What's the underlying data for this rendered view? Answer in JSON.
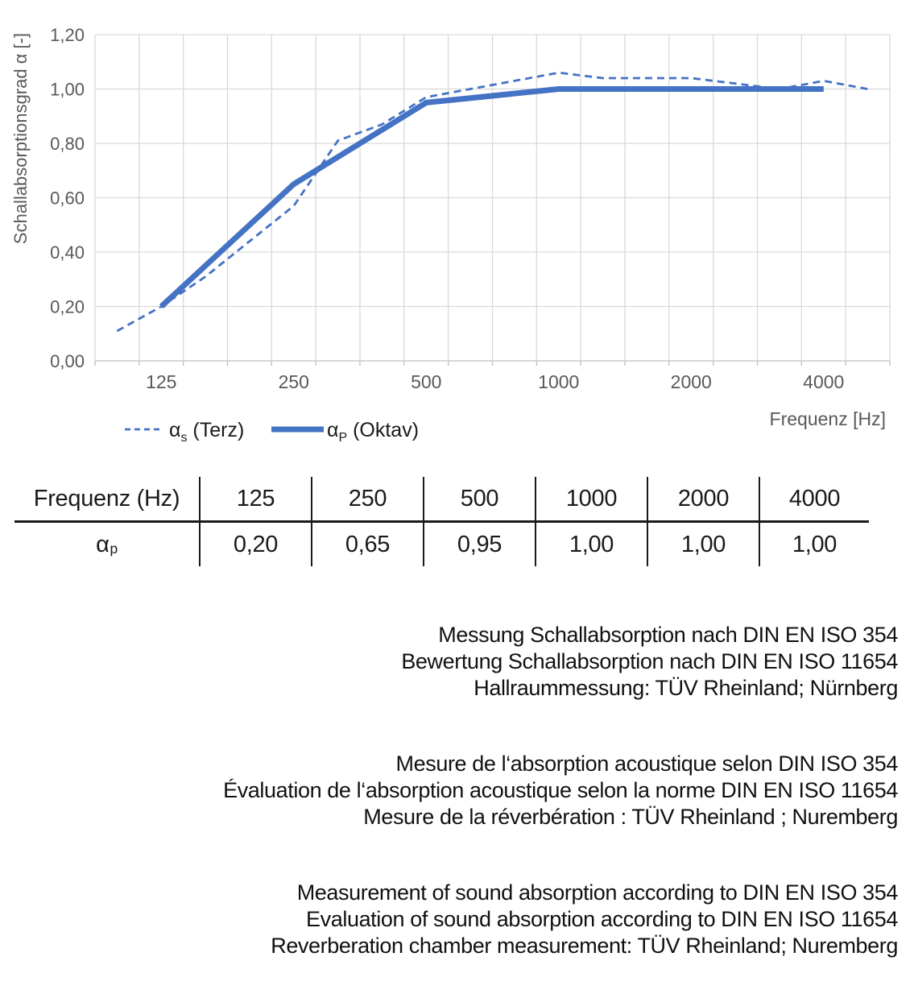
{
  "colors": {
    "series_blue": "#4472C4",
    "grid": "#D9D9D9",
    "axis_line": "#BFBFBF",
    "tick_text": "#595959",
    "body_text": "#1a1a1a"
  },
  "chart_data": {
    "type": "line",
    "title": "",
    "xlabel": "Frequenz [Hz]",
    "ylabel": "Schallabsorptionsgrad α [-]",
    "x_scale": "third-octave categorical (log)",
    "categories": [
      100,
      125,
      160,
      200,
      250,
      315,
      400,
      500,
      630,
      800,
      1000,
      1250,
      1600,
      2000,
      2500,
      3150,
      4000,
      5000
    ],
    "x_tick_labels": [
      "125",
      "250",
      "500",
      "1000",
      "2000",
      "4000"
    ],
    "ylim": [
      0,
      1.2
    ],
    "y_tick_step": 0.2,
    "y_tick_labels": [
      "0,00",
      "0,20",
      "0,40",
      "0,60",
      "0,80",
      "1,00",
      "1,20"
    ],
    "grid": true,
    "legend_position": "bottom-left",
    "series": [
      {
        "name": "αs (Terz)",
        "style": "dashed",
        "x": [
          100,
          125,
          160,
          200,
          250,
          315,
          400,
          500,
          630,
          800,
          1000,
          1250,
          1600,
          2000,
          2500,
          3150,
          4000,
          5000
        ],
        "values": [
          0.11,
          0.2,
          0.31,
          0.44,
          0.57,
          0.81,
          0.87,
          0.97,
          1.0,
          1.03,
          1.06,
          1.04,
          1.04,
          1.04,
          1.02,
          1.0,
          1.03,
          1.0
        ]
      },
      {
        "name": "αP (Oktav)",
        "style": "solid",
        "x": [
          125,
          250,
          500,
          1000,
          2000,
          4000
        ],
        "values": [
          0.2,
          0.65,
          0.95,
          1.0,
          1.0,
          1.0
        ]
      }
    ],
    "legend": [
      {
        "alpha": "α",
        "sub": "s",
        "rest": " (Terz)",
        "style": "dashed"
      },
      {
        "alpha": "α",
        "sub": "P",
        "rest": " (Oktav)",
        "style": "solid"
      }
    ]
  },
  "table": {
    "header_label": "Frequenz (Hz)",
    "row_label_alpha": "α",
    "row_label_sub": "p",
    "frequencies": [
      "125",
      "250",
      "500",
      "1000",
      "2000",
      "4000"
    ],
    "values": [
      "0,20",
      "0,65",
      "0,95",
      "1,00",
      "1,00",
      "1,00"
    ]
  },
  "notes": {
    "de": [
      "Messung Schallabsorption nach DIN EN ISO 354",
      "Bewertung Schallabsorption nach DIN EN ISO 11654",
      "Hallraummessung: TÜV Rheinland; Nürnberg"
    ],
    "fr": [
      "Mesure de l‘absorption acoustique selon DIN ISO 354",
      "Évaluation de l‘absorption acoustique selon la norme DIN EN ISO 11654",
      "Mesure de la réverbération : TÜV Rheinland ; Nuremberg"
    ],
    "en": [
      "Measurement of sound absorption according to DIN EN ISO 354",
      "Evaluation of sound absorption according to DIN EN ISO 11654",
      "Reverberation chamber measurement: TÜV Rheinland; Nuremberg"
    ]
  }
}
